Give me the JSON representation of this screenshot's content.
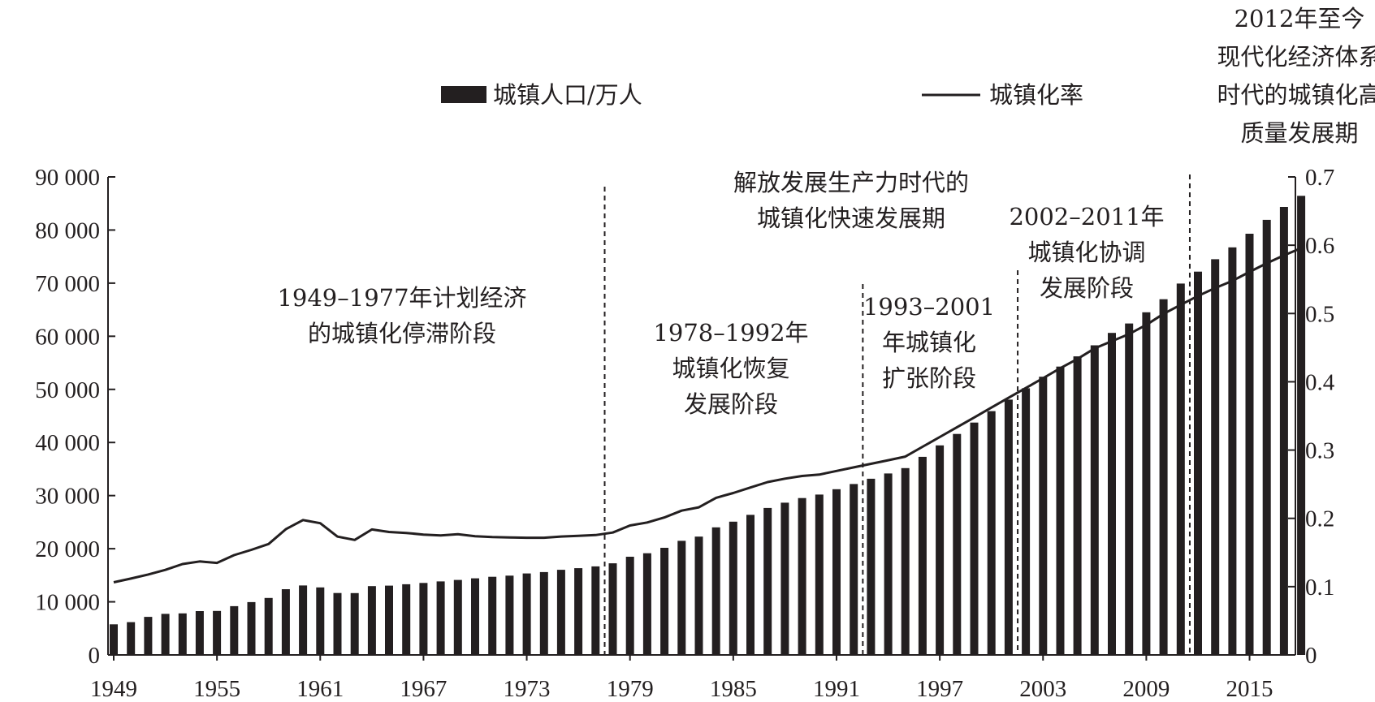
{
  "chart_data": {
    "type": "bar",
    "legend": {
      "placement": "top",
      "bar_label": "城镇人口/万人",
      "line_label": "城镇化率"
    },
    "x": {
      "start": 1949,
      "end": 2018,
      "tick_labels": [
        "1949",
        "1955",
        "1961",
        "1967",
        "1973",
        "1979",
        "1985",
        "1991",
        "1997",
        "2003",
        "2009",
        "2015"
      ]
    },
    "y_left": {
      "range": [
        0,
        90000
      ],
      "tick_labels": [
        "0",
        "10 000",
        "20 000",
        "30 000",
        "40 000",
        "50 000",
        "60 000",
        "70 000",
        "80 000",
        "90 000"
      ]
    },
    "y_right": {
      "range": [
        0,
        0.7
      ],
      "tick_labels": [
        "0",
        "0.1",
        "0.2",
        "0.3",
        "0.4",
        "0.5",
        "0.6",
        "0.7"
      ]
    },
    "colors": {
      "bars": "#231f20",
      "line": "#231f20"
    },
    "series": [
      {
        "name": "城镇人口/万人",
        "type": "bar",
        "axis": "left",
        "values": [
          5765,
          6169,
          7163,
          7726,
          7826,
          8249,
          8285,
          9185,
          9949,
          10721,
          12371,
          13073,
          12707,
          11659,
          11646,
          12950,
          13045,
          13313,
          13548,
          13838,
          14117,
          14424,
          14711,
          14935,
          15345,
          15595,
          16030,
          16341,
          16669,
          17245,
          18495,
          19140,
          20171,
          21480,
          22274,
          24017,
          25094,
          26366,
          27674,
          28661,
          29540,
          30195,
          31203,
          32175,
          33173,
          34169,
          35174,
          37304,
          39449,
          41608,
          43748,
          45906,
          48064,
          50212,
          52376,
          54283,
          56212,
          58288,
          60633,
          62403,
          64512,
          66978,
          69927,
          72175,
          74502,
          76738,
          79302,
          81924,
          84343,
          86433
        ]
      },
      {
        "name": "城镇化率",
        "type": "line",
        "axis": "right",
        "values": [
          0.1064,
          0.1118,
          0.1178,
          0.1246,
          0.1331,
          0.1369,
          0.1348,
          0.1462,
          0.1539,
          0.1625,
          0.1841,
          0.1975,
          0.1929,
          0.1733,
          0.1684,
          0.1837,
          0.18,
          0.1786,
          0.1762,
          0.1751,
          0.1769,
          0.1738,
          0.1726,
          0.172,
          0.1716,
          0.1716,
          0.1734,
          0.1744,
          0.1755,
          0.1792,
          0.1896,
          0.1939,
          0.2013,
          0.2113,
          0.2162,
          0.2301,
          0.2371,
          0.2452,
          0.2532,
          0.2581,
          0.2621,
          0.2641,
          0.2694,
          0.2746,
          0.2799,
          0.2851,
          0.2904,
          0.3048,
          0.3191,
          0.3335,
          0.3478,
          0.3622,
          0.3766,
          0.3909,
          0.4053,
          0.4199,
          0.4334,
          0.4489,
          0.4594,
          0.4699,
          0.4834,
          0.4995,
          0.5127,
          0.5257,
          0.5373,
          0.5477,
          0.561,
          0.5735,
          0.5852,
          0.5958
        ]
      }
    ],
    "dividers": [
      1978,
      1993,
      2002,
      2012
    ],
    "annotations": [
      {
        "id": "stage1",
        "lines": [
          "1949–1977年计划经济",
          "的城镇化停滞阶段"
        ]
      },
      {
        "id": "era-title",
        "lines": [
          "解放发展生产力时代的",
          "城镇化快速发展期"
        ]
      },
      {
        "id": "stage2",
        "lines": [
          "1978–1992年",
          "城镇化恢复",
          "发展阶段"
        ]
      },
      {
        "id": "stage3",
        "lines": [
          "1993–2001",
          "年城镇化",
          "扩张阶段"
        ]
      },
      {
        "id": "stage4",
        "lines": [
          "2002–2011年",
          "城镇化协调",
          "发展阶段"
        ]
      },
      {
        "id": "stage5",
        "lines": [
          "2012年至今",
          "现代化经济体系",
          "时代的城镇化高",
          "质量发展期"
        ]
      }
    ]
  }
}
